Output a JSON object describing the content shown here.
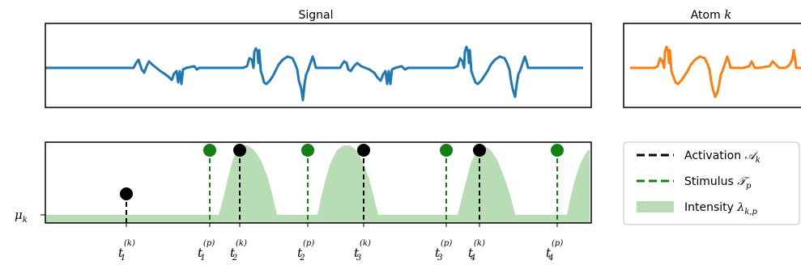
{
  "titles": {
    "signal": "Signal",
    "atom_prefix": "Atom ",
    "atom_var": "k"
  },
  "colors": {
    "signal": "#1f77b4",
    "atom": "#ff7f0e",
    "activation": "#000000",
    "stimulus": "#138013",
    "intensity": "#b8dcb4"
  },
  "mu_label": {
    "base": "μ",
    "sub": "k"
  },
  "legend": {
    "activation": {
      "text": "Activation ",
      "symbol": "𝒜",
      "sub": "k"
    },
    "stimulus": {
      "text": "Stimulus ",
      "symbol": "𝒯",
      "sub": "p"
    },
    "intensity": {
      "text": "Intensity ",
      "symbol": "λ",
      "sub": "k,p"
    }
  },
  "tick_labels": [
    {
      "base": "t",
      "sub": "1",
      "sup": "(k)"
    },
    {
      "base": "t",
      "sub": "1",
      "sup": "(p)"
    },
    {
      "base": "t",
      "sub": "2",
      "sup": "(k)"
    },
    {
      "base": "t",
      "sub": "2",
      "sup": "(p)"
    },
    {
      "base": "t",
      "sub": "3",
      "sup": "(k)"
    },
    {
      "base": "t",
      "sub": "3",
      "sup": "(p)"
    },
    {
      "base": "t",
      "sub": "4",
      "sup": "(k)"
    },
    {
      "base": "t",
      "sub": "4",
      "sup": "(p)"
    }
  ]
}
